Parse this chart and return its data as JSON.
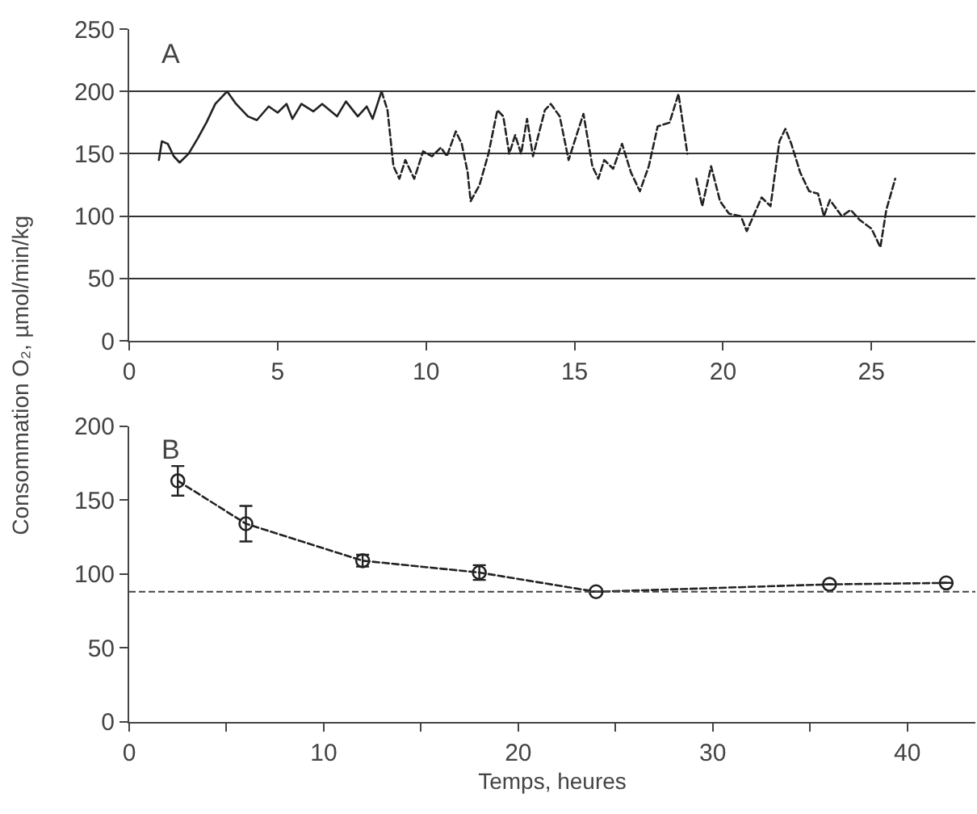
{
  "chart_data": [
    {
      "type": "line",
      "ylabel": "Consommation O₂, µmol/min/kg",
      "annotations": [
        "A"
      ],
      "grid": "y",
      "xlim": [
        0,
        28.5
      ],
      "xticks": [
        0,
        5,
        10,
        15,
        20,
        25
      ],
      "ylim": [
        0,
        250
      ],
      "yticks": [
        0,
        50,
        100,
        150,
        200,
        250
      ],
      "series": [
        {
          "color": "#222222",
          "line_style": "solid",
          "x": [
            1.0,
            1.1,
            1.3,
            1.5,
            1.7,
            2.0,
            2.3,
            2.6,
            2.9,
            3.1,
            3.3,
            3.6,
            4.0,
            4.3,
            4.7,
            5.0,
            5.3,
            5.5,
            5.8,
            6.2,
            6.5,
            7.0,
            7.3,
            7.7,
            8.0,
            8.2,
            8.5
          ],
          "values": [
            145,
            160,
            158,
            148,
            143,
            150,
            162,
            175,
            190,
            195,
            200,
            190,
            180,
            177,
            188,
            183,
            190,
            178,
            190,
            184,
            190,
            180,
            192,
            180,
            188,
            178,
            200
          ]
        },
        {
          "color": "#222222",
          "line_style": "dashed",
          "x": [
            8.5,
            8.7,
            8.9,
            9.1,
            9.3,
            9.6,
            9.9,
            10.2,
            10.5,
            10.7,
            11.0,
            11.2,
            11.4,
            11.5,
            11.8,
            12.1,
            12.4,
            12.6,
            12.8,
            13.0,
            13.2,
            13.4,
            13.6,
            14.0,
            14.2,
            14.5,
            14.8,
            15.0,
            15.3,
            15.6,
            15.8,
            16.0,
            16.3,
            16.6,
            16.9,
            17.2,
            17.5,
            17.8,
            18.2,
            18.5,
            18.8,
            18.95,
            19.1,
            19.3,
            19.6,
            19.9,
            20.2,
            20.6,
            20.8,
            21.3,
            21.6,
            21.9,
            22.1,
            22.3,
            22.6,
            22.9,
            23.2,
            23.4,
            23.6,
            24.0,
            24.3,
            24.6,
            25.0,
            25.3,
            25.5,
            25.8
          ],
          "values": [
            200,
            185,
            140,
            130,
            145,
            130,
            152,
            148,
            155,
            148,
            168,
            158,
            135,
            112,
            125,
            150,
            185,
            180,
            150,
            165,
            150,
            178,
            148,
            185,
            190,
            180,
            145,
            160,
            182,
            140,
            130,
            145,
            138,
            158,
            135,
            120,
            140,
            172,
            175,
            198,
            150,
            null,
            130,
            108,
            140,
            112,
            102,
            100,
            88,
            115,
            108,
            160,
            170,
            158,
            135,
            120,
            118,
            100,
            113,
            100,
            105,
            97,
            90,
            75,
            105,
            130
          ]
        }
      ]
    },
    {
      "type": "line",
      "xlabel": "Temps, heures",
      "annotations": [
        "B"
      ],
      "marker": "circle",
      "line_style": "dashed",
      "xlim": [
        0,
        43.5
      ],
      "xticks": [
        0,
        {
          "value": 5,
          "label": null
        },
        10,
        {
          "value": 15,
          "label": null
        },
        20,
        {
          "value": 25,
          "label": null
        },
        30,
        {
          "value": 35,
          "label": null
        },
        40
      ],
      "ylim": [
        0,
        200
      ],
      "yticks": [
        0,
        50,
        100,
        150,
        200
      ],
      "x": [
        2.5,
        6,
        12,
        18,
        24,
        36,
        42
      ],
      "values": [
        163,
        134,
        109,
        101,
        88,
        93,
        94
      ],
      "color": "#222222",
      "errors": [
        10,
        12,
        4,
        5,
        null,
        null,
        null
      ],
      "ref_lines": [
        {
          "axis": "y",
          "value": 88,
          "line_style": "dashed",
          "color": "#444444"
        }
      ]
    }
  ]
}
